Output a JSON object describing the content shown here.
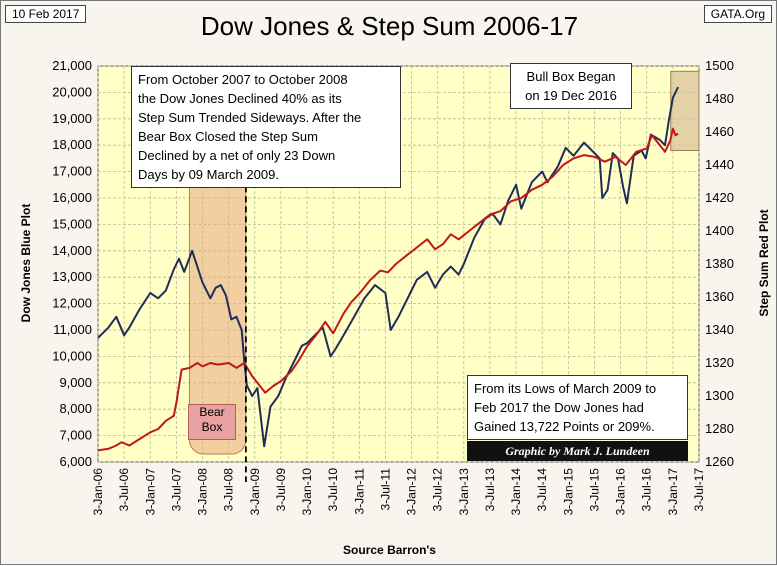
{
  "header": {
    "date": "10 Feb 2017",
    "title": "Dow Jones & Step Sum 2006-17",
    "source_tag": "GATA.Org"
  },
  "notes": {
    "bear_note": [
      "From  October 2007 to October 2008",
      "the Dow Jones Declined 40% as its",
      "Step Sum Trended Sideways.  After the",
      "Bear Box Closed the Step Sum",
      "Declined by a net of only 23 Down",
      "Days by 09 March 2009."
    ],
    "bull_note": [
      "Bull Box Began",
      "on 19 Dec 2016"
    ],
    "lows_note": [
      "From  its Lows of March 2009 to",
      "Feb 2017 the Dow Jones had",
      "Gained 13,722 Points or 209%."
    ],
    "bear_box_label": [
      "Bear",
      "Box"
    ],
    "credit": "Graphic by Mark J. Lundeen"
  },
  "chart_data": {
    "type": "line",
    "title": "Dow Jones & Step Sum 2006-17",
    "xlabel": "Source Barron's",
    "ylabel_left": "Dow  Jones  Blue Plot",
    "ylabel_right": "Step  Sum  Red Plot",
    "x_tick_labels": [
      "3-Jan-06",
      "3-Jul-06",
      "3-Jan-07",
      "3-Jul-07",
      "3-Jan-08",
      "3-Jul-08",
      "3-Jan-09",
      "3-Jul-09",
      "3-Jan-10",
      "3-Jul-10",
      "3-Jan-11",
      "3-Jul-11",
      "3-Jan-12",
      "3-Jul-12",
      "3-Jan-13",
      "3-Jul-13",
      "3-Jan-14",
      "3-Jul-14",
      "3-Jan-15",
      "3-Jul-15",
      "3-Jan-16",
      "3-Jul-16",
      "3-Jan-17",
      "3-Jul-17"
    ],
    "xlim": [
      2006.0,
      2017.5
    ],
    "ylim_left": [
      6000,
      21000
    ],
    "ylim_right": [
      1260,
      1500
    ],
    "left_ticks": [
      6000,
      7000,
      8000,
      9000,
      10000,
      11000,
      12000,
      13000,
      14000,
      15000,
      16000,
      17000,
      18000,
      19000,
      20000,
      21000
    ],
    "left_tick_labels": [
      "6,000",
      "7,000",
      "8,000",
      "9,000",
      "10,000",
      "11,000",
      "12,000",
      "13,000",
      "14,000",
      "15,000",
      "16,000",
      "17,000",
      "18,000",
      "19,000",
      "20,000",
      "21,000"
    ],
    "right_ticks": [
      1260,
      1280,
      1300,
      1320,
      1340,
      1360,
      1380,
      1400,
      1420,
      1440,
      1460,
      1480,
      1500
    ],
    "right_tick_labels": [
      "1260",
      "1280",
      "1300",
      "1320",
      "1340",
      "1360",
      "1380",
      "1400",
      "1420",
      "1440",
      "1460",
      "1480",
      "1500"
    ],
    "bear_box": [
      2007.75,
      2008.83
    ],
    "bull_box": [
      2016.96,
      2017.5
    ],
    "bull_box_range_left": [
      17800,
      20800
    ],
    "marker_date": 2008.83,
    "series": [
      {
        "name": "Dow Jones",
        "axis": "left",
        "color": "#1f2d5a",
        "points": [
          [
            2006.0,
            10700
          ],
          [
            2006.2,
            11100
          ],
          [
            2006.35,
            11500
          ],
          [
            2006.5,
            10800
          ],
          [
            2006.6,
            11100
          ],
          [
            2006.8,
            11800
          ],
          [
            2007.0,
            12400
          ],
          [
            2007.15,
            12200
          ],
          [
            2007.3,
            12500
          ],
          [
            2007.45,
            13300
          ],
          [
            2007.55,
            13700
          ],
          [
            2007.65,
            13200
          ],
          [
            2007.8,
            14000
          ],
          [
            2007.9,
            13400
          ],
          [
            2008.0,
            12800
          ],
          [
            2008.15,
            12200
          ],
          [
            2008.25,
            12600
          ],
          [
            2008.35,
            12700
          ],
          [
            2008.45,
            12300
          ],
          [
            2008.55,
            11400
          ],
          [
            2008.65,
            11500
          ],
          [
            2008.75,
            11000
          ],
          [
            2008.8,
            9800
          ],
          [
            2008.85,
            8900
          ],
          [
            2008.95,
            8500
          ],
          [
            2009.05,
            8800
          ],
          [
            2009.12,
            7600
          ],
          [
            2009.18,
            6600
          ],
          [
            2009.3,
            8100
          ],
          [
            2009.45,
            8500
          ],
          [
            2009.6,
            9200
          ],
          [
            2009.75,
            9800
          ],
          [
            2009.9,
            10400
          ],
          [
            2010.0,
            10500
          ],
          [
            2010.2,
            10900
          ],
          [
            2010.3,
            11100
          ],
          [
            2010.45,
            10000
          ],
          [
            2010.55,
            10300
          ],
          [
            2010.7,
            10800
          ],
          [
            2010.9,
            11500
          ],
          [
            2011.1,
            12200
          ],
          [
            2011.3,
            12700
          ],
          [
            2011.5,
            12400
          ],
          [
            2011.6,
            11000
          ],
          [
            2011.75,
            11500
          ],
          [
            2011.9,
            12100
          ],
          [
            2012.1,
            12900
          ],
          [
            2012.3,
            13200
          ],
          [
            2012.45,
            12600
          ],
          [
            2012.6,
            13100
          ],
          [
            2012.75,
            13400
          ],
          [
            2012.9,
            13100
          ],
          [
            2013.0,
            13500
          ],
          [
            2013.2,
            14500
          ],
          [
            2013.4,
            15200
          ],
          [
            2013.55,
            15400
          ],
          [
            2013.7,
            15000
          ],
          [
            2013.85,
            15900
          ],
          [
            2014.0,
            16500
          ],
          [
            2014.1,
            15600
          ],
          [
            2014.3,
            16600
          ],
          [
            2014.5,
            17000
          ],
          [
            2014.6,
            16600
          ],
          [
            2014.8,
            17200
          ],
          [
            2014.95,
            17900
          ],
          [
            2015.1,
            17600
          ],
          [
            2015.3,
            18100
          ],
          [
            2015.45,
            17800
          ],
          [
            2015.6,
            17500
          ],
          [
            2015.65,
            16000
          ],
          [
            2015.75,
            16300
          ],
          [
            2015.85,
            17700
          ],
          [
            2015.95,
            17500
          ],
          [
            2016.05,
            16400
          ],
          [
            2016.12,
            15800
          ],
          [
            2016.25,
            17600
          ],
          [
            2016.4,
            17800
          ],
          [
            2016.48,
            17500
          ],
          [
            2016.58,
            18400
          ],
          [
            2016.75,
            18200
          ],
          [
            2016.85,
            18000
          ],
          [
            2016.92,
            18900
          ],
          [
            2017.0,
            19800
          ],
          [
            2017.05,
            20000
          ],
          [
            2017.1,
            20200
          ]
        ]
      },
      {
        "name": "Step Sum",
        "axis": "right",
        "color": "#c01818",
        "points": [
          [
            2006.0,
            1267
          ],
          [
            2006.2,
            1268
          ],
          [
            2006.35,
            1270
          ],
          [
            2006.45,
            1272
          ],
          [
            2006.6,
            1270
          ],
          [
            2006.8,
            1274
          ],
          [
            2007.0,
            1278
          ],
          [
            2007.15,
            1280
          ],
          [
            2007.3,
            1285
          ],
          [
            2007.45,
            1288
          ],
          [
            2007.5,
            1296
          ],
          [
            2007.6,
            1316
          ],
          [
            2007.75,
            1317
          ],
          [
            2007.9,
            1320
          ],
          [
            2008.0,
            1318
          ],
          [
            2008.15,
            1320
          ],
          [
            2008.3,
            1319
          ],
          [
            2008.5,
            1320
          ],
          [
            2008.65,
            1317
          ],
          [
            2008.8,
            1320
          ],
          [
            2008.95,
            1312
          ],
          [
            2009.1,
            1306
          ],
          [
            2009.2,
            1302
          ],
          [
            2009.35,
            1306
          ],
          [
            2009.5,
            1309
          ],
          [
            2009.7,
            1315
          ],
          [
            2009.85,
            1322
          ],
          [
            2010.0,
            1330
          ],
          [
            2010.2,
            1338
          ],
          [
            2010.35,
            1345
          ],
          [
            2010.5,
            1338
          ],
          [
            2010.7,
            1350
          ],
          [
            2010.85,
            1357
          ],
          [
            2011.0,
            1362
          ],
          [
            2011.2,
            1370
          ],
          [
            2011.4,
            1376
          ],
          [
            2011.55,
            1375
          ],
          [
            2011.7,
            1380
          ],
          [
            2011.9,
            1385
          ],
          [
            2012.1,
            1390
          ],
          [
            2012.3,
            1395
          ],
          [
            2012.45,
            1389
          ],
          [
            2012.6,
            1392
          ],
          [
            2012.75,
            1398
          ],
          [
            2012.9,
            1395
          ],
          [
            2013.1,
            1400
          ],
          [
            2013.3,
            1405
          ],
          [
            2013.5,
            1410
          ],
          [
            2013.7,
            1412
          ],
          [
            2013.9,
            1418
          ],
          [
            2014.1,
            1420
          ],
          [
            2014.3,
            1425
          ],
          [
            2014.5,
            1428
          ],
          [
            2014.7,
            1433
          ],
          [
            2014.9,
            1440
          ],
          [
            2015.1,
            1444
          ],
          [
            2015.3,
            1446
          ],
          [
            2015.5,
            1445
          ],
          [
            2015.7,
            1442
          ],
          [
            2015.9,
            1445
          ],
          [
            2016.1,
            1440
          ],
          [
            2016.3,
            1448
          ],
          [
            2016.5,
            1450
          ],
          [
            2016.6,
            1458
          ],
          [
            2016.7,
            1454
          ],
          [
            2016.85,
            1448
          ],
          [
            2016.95,
            1455
          ],
          [
            2017.0,
            1462
          ],
          [
            2017.05,
            1458
          ],
          [
            2017.1,
            1459
          ]
        ]
      }
    ]
  }
}
